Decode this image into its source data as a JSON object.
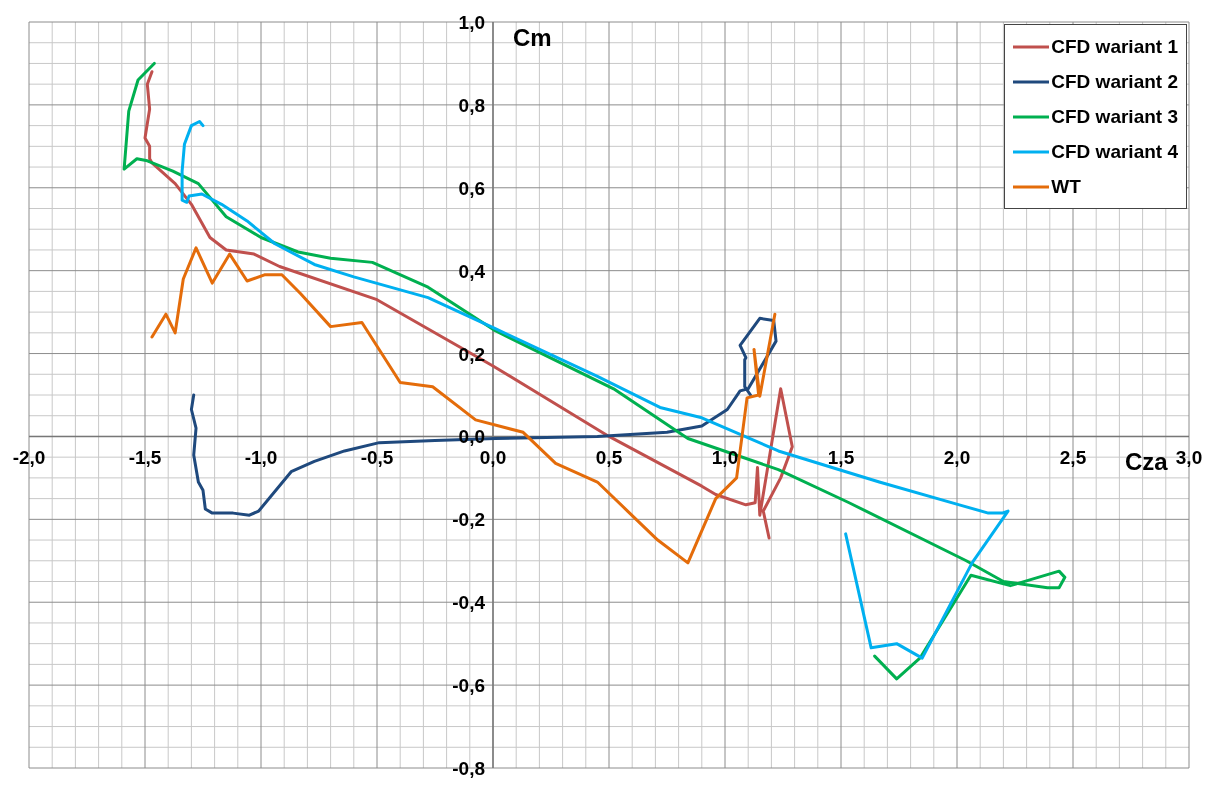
{
  "chart_data": {
    "type": "line",
    "xlabel": "Cza",
    "ylabel": "Cm",
    "xlim": [
      -2,
      3
    ],
    "ylim": [
      -0.8,
      1
    ],
    "xticks": [
      {
        "value": -2,
        "label": "-2,0"
      },
      {
        "value": -1.5,
        "label": "-1,5"
      },
      {
        "value": -1,
        "label": "-1,0"
      },
      {
        "value": -0.5,
        "label": "-0,5"
      },
      {
        "value": 0,
        "label": "0,0"
      },
      {
        "value": 0.5,
        "label": "0,5"
      },
      {
        "value": 1,
        "label": "1,0"
      },
      {
        "value": 1.5,
        "label": "1,5"
      },
      {
        "value": 2,
        "label": "2,0"
      },
      {
        "value": 2.5,
        "label": "2,5"
      },
      {
        "value": 3,
        "label": "3,0"
      }
    ],
    "yticks": [
      {
        "value": -0.8,
        "label": "-0,8"
      },
      {
        "value": -0.6,
        "label": "-0,6"
      },
      {
        "value": -0.4,
        "label": "-0,4"
      },
      {
        "value": -0.2,
        "label": "-0,2"
      },
      {
        "value": 0,
        "label": "0,0"
      },
      {
        "value": 0.2,
        "label": "0,2"
      },
      {
        "value": 0.4,
        "label": "0,4"
      },
      {
        "value": 0.6,
        "label": "0,6"
      },
      {
        "value": 0.8,
        "label": "0,8"
      },
      {
        "value": 1,
        "label": "1,0"
      }
    ],
    "grid": true,
    "legend": "top right",
    "marker": "none",
    "line_style": "solid",
    "series": [
      {
        "name": "CFD wariant 1",
        "color": "#c0504d",
        "x": [
          -1.47,
          -1.49,
          -1.48,
          -1.5,
          -1.48,
          -1.48,
          -1.47,
          -1.37,
          -1.3,
          -1.22,
          -1.15,
          -1.03,
          -0.92,
          -0.5,
          0,
          0.5,
          0.9,
          0.96,
          1.09,
          1.13,
          1.14,
          1.15,
          1.24,
          1.29,
          1.24,
          1.165,
          1.19
        ],
        "values": [
          0.88,
          0.85,
          0.79,
          0.72,
          0.7,
          0.67,
          0.66,
          0.61,
          0.56,
          0.48,
          0.45,
          0.44,
          0.41,
          0.33,
          0.17,
          0,
          -0.12,
          -0.14,
          -0.165,
          -0.16,
          -0.075,
          -0.19,
          0.115,
          -0.025,
          -0.1,
          -0.18,
          -0.245
        ]
      },
      {
        "name": "CFD wariant 2",
        "color": "#1f497d",
        "x": [
          -1.29,
          -1.3,
          -1.28,
          -1.29,
          -1.27,
          -1.25,
          -1.24,
          -1.21,
          -1.12,
          -1.05,
          -1.01,
          -0.87,
          -0.77,
          -0.64,
          -0.49,
          -0.25,
          0.01,
          0.45,
          0.75,
          0.9,
          1.01,
          1.065,
          1.1,
          1.22,
          1.21,
          1.15,
          1.065,
          1.09,
          1.085,
          1.085,
          1.11
        ],
        "values": [
          0.1,
          0.065,
          0.02,
          -0.045,
          -0.11,
          -0.13,
          -0.175,
          -0.185,
          -0.185,
          -0.19,
          -0.18,
          -0.085,
          -0.06,
          -0.035,
          -0.015,
          -0.01,
          -0.005,
          0,
          0.01,
          0.025,
          0.065,
          0.11,
          0.115,
          0.23,
          0.28,
          0.285,
          0.22,
          0.19,
          0.185,
          0.12,
          0.1
        ]
      },
      {
        "name": "CFD wariant 3",
        "color": "#00b050",
        "x": [
          -1.46,
          -1.53,
          -1.57,
          -1.59,
          -1.535,
          -1.49,
          -1.38,
          -1.27,
          -1.15,
          -1,
          -0.84,
          -0.7,
          -0.52,
          -0.28,
          0.01,
          0.52,
          0.84,
          1.23,
          1.535,
          2.04,
          2.2,
          2.39,
          2.44,
          2.465,
          2.44,
          2.23,
          2.06,
          1.84,
          1.74,
          1.645
        ],
        "values": [
          0.9,
          0.86,
          0.785,
          0.645,
          0.67,
          0.665,
          0.64,
          0.61,
          0.53,
          0.48,
          0.445,
          0.43,
          0.42,
          0.36,
          0.255,
          0.115,
          -0.005,
          -0.08,
          -0.16,
          -0.3,
          -0.35,
          -0.365,
          -0.365,
          -0.34,
          -0.325,
          -0.36,
          -0.335,
          -0.535,
          -0.585,
          -0.53
        ]
      },
      {
        "name": "CFD wariant 4",
        "color": "#00b0f0",
        "x": [
          -1.25,
          -1.265,
          -1.3,
          -1.33,
          -1.34,
          -1.34,
          -1.32,
          -1.31,
          -1.255,
          -1.17,
          -1.06,
          -0.94,
          -0.77,
          -0.6,
          -0.28,
          0.01,
          0.45,
          0.72,
          0.9,
          1.23,
          1.665,
          2.01,
          2.135,
          2.195,
          2.22,
          2.065,
          1.85,
          1.74,
          1.63,
          1.52
        ],
        "values": [
          0.75,
          0.76,
          0.75,
          0.705,
          0.64,
          0.57,
          0.565,
          0.58,
          0.585,
          0.56,
          0.52,
          0.465,
          0.415,
          0.385,
          0.335,
          0.26,
          0.145,
          0.07,
          0.045,
          -0.035,
          -0.11,
          -0.165,
          -0.185,
          -0.185,
          -0.18,
          -0.305,
          -0.535,
          -0.5,
          -0.51,
          -0.235
        ]
      },
      {
        "name": "WT",
        "color": "#e46c0a",
        "x": [
          -1.47,
          -1.41,
          -1.37,
          -1.335,
          -1.28,
          -1.21,
          -1.135,
          -1.06,
          -0.985,
          -0.91,
          -0.83,
          -0.7,
          -0.565,
          -0.4,
          -0.26,
          -0.075,
          0.13,
          0.27,
          0.45,
          0.58,
          0.71,
          0.84,
          0.96,
          1.05,
          1.095,
          1.145,
          1.125,
          1.15,
          1.215
        ],
        "values": [
          0.24,
          0.295,
          0.25,
          0.38,
          0.455,
          0.37,
          0.44,
          0.375,
          0.39,
          0.39,
          0.345,
          0.265,
          0.275,
          0.13,
          0.12,
          0.04,
          0.01,
          -0.065,
          -0.11,
          -0.18,
          -0.25,
          -0.305,
          -0.15,
          -0.1,
          0.093,
          0.1,
          0.21,
          0.097,
          0.295
        ]
      }
    ]
  }
}
